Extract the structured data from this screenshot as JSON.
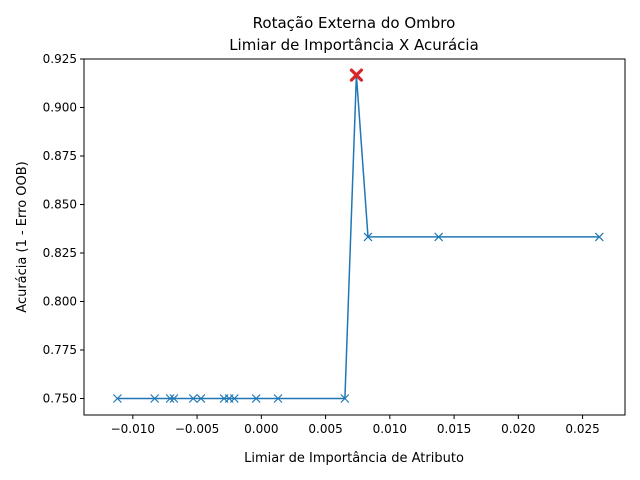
{
  "chart_data": {
    "type": "line",
    "title_line1": "Rotação Externa do Ombro",
    "title_line2": "Limiar de Importância X Acurácia",
    "xlabel": "Limiar de Importância de Atributo",
    "ylabel": "Acurácia (1 - Erro OOB)",
    "xlim": [
      -0.0138,
      0.0283
    ],
    "ylim": [
      0.7415,
      0.925
    ],
    "xticks": [
      -0.01,
      -0.005,
      0.0,
      0.005,
      0.01,
      0.015,
      0.02,
      0.025
    ],
    "xtick_labels": [
      "−0.010",
      "−0.005",
      "0.000",
      "0.005",
      "0.010",
      "0.015",
      "0.020",
      "0.025"
    ],
    "yticks": [
      0.75,
      0.775,
      0.8,
      0.825,
      0.85,
      0.875,
      0.9,
      0.925
    ],
    "ytick_labels": [
      "0.750",
      "0.775",
      "0.800",
      "0.825",
      "0.850",
      "0.875",
      "0.900",
      "0.925"
    ],
    "grid": false,
    "line_color": "#1f77b4",
    "highlight_color": "#d62728",
    "series": [
      {
        "x": [
          -0.0112,
          -0.0083,
          -0.0071,
          -0.0068,
          -0.0053,
          -0.0047,
          -0.0029,
          -0.0025,
          -0.0021,
          -0.0004,
          0.0013,
          0.0065,
          0.0074,
          0.0083,
          0.0138,
          0.0263
        ],
        "y": [
          0.75,
          0.75,
          0.75,
          0.75,
          0.75,
          0.75,
          0.75,
          0.75,
          0.75,
          0.75,
          0.75,
          0.75,
          0.9167,
          0.8333,
          0.8333,
          0.8333
        ]
      }
    ],
    "highlight": {
      "x": 0.0074,
      "y": 0.9167
    }
  }
}
